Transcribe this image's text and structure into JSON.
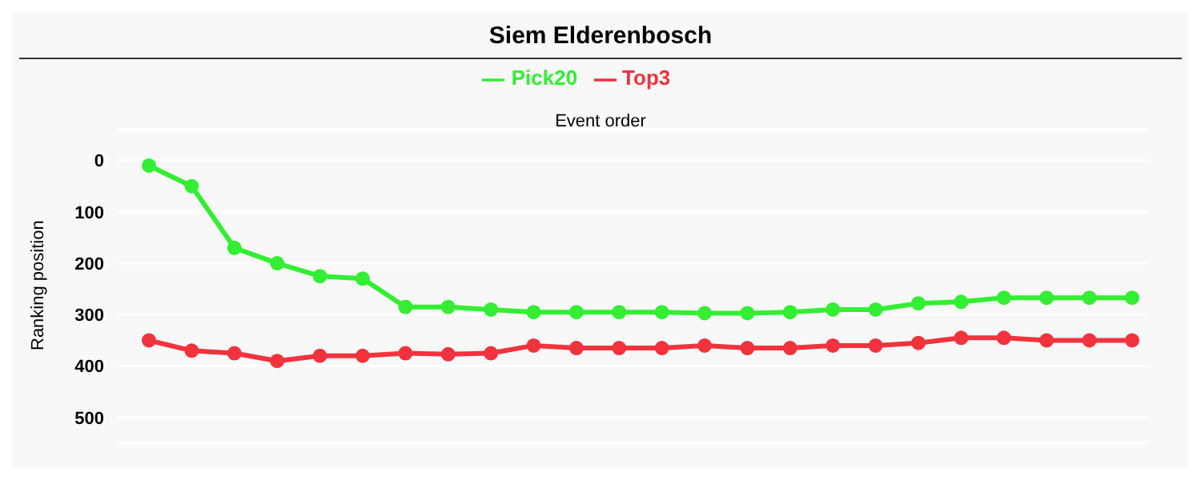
{
  "chart_data": {
    "type": "line",
    "title": "Siem Elderenbosch",
    "xlabel": "Event order",
    "ylabel": "Ranking position",
    "categories": [
      null,
      null,
      null,
      null,
      null,
      null,
      null,
      null,
      null,
      null,
      null,
      null,
      null,
      null,
      null,
      null,
      null,
      null,
      null,
      null,
      null,
      null,
      null,
      null
    ],
    "series": [
      {
        "name": "Top3",
        "color": "#f0333d",
        "values": [
          350,
          370,
          375,
          390,
          380,
          380,
          375,
          377,
          375,
          360,
          365,
          365,
          365,
          360,
          365,
          365,
          360,
          360,
          355,
          345,
          345,
          350,
          350,
          350
        ]
      },
      {
        "name": "Pick20",
        "color": "#33ee33",
        "values": [
          10,
          50,
          170,
          200,
          225,
          230,
          285,
          285,
          290,
          295,
          295,
          295,
          295,
          297,
          297,
          295,
          290,
          290,
          278,
          275,
          267,
          267,
          267,
          267
        ]
      }
    ],
    "ylim": [
      550,
      -60
    ],
    "yticks": [
      0,
      100,
      200,
      300,
      400,
      500
    ],
    "grid": "y",
    "legend": "top",
    "marker": "circle",
    "line_style": "solid",
    "tick_labels": "y"
  }
}
